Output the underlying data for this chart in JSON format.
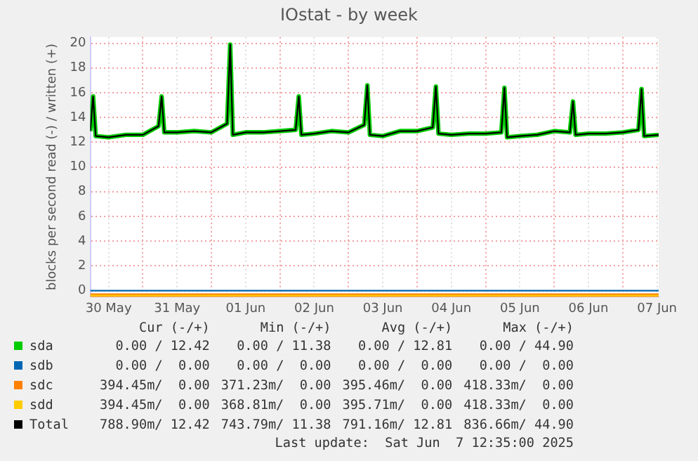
{
  "chart_data": {
    "type": "line",
    "title": "IOstat - by week",
    "ylabel": "blocks per second read (-) / written (+)",
    "xlim": [
      "2025-05-30T05:35",
      "2025-06-07T12:35"
    ],
    "xticks": [
      {
        "value": "2025-05-30T12:00",
        "label": "30 May"
      },
      {
        "value": "2025-05-31T00:00",
        "label": null
      },
      {
        "value": "2025-05-31T12:00",
        "label": "31 May"
      },
      {
        "value": "2025-06-01T00:00",
        "label": null
      },
      {
        "value": "2025-06-01T12:00",
        "label": "01 Jun"
      },
      {
        "value": "2025-06-02T00:00",
        "label": null
      },
      {
        "value": "2025-06-02T12:00",
        "label": "02 Jun"
      },
      {
        "value": "2025-06-03T00:00",
        "label": null
      },
      {
        "value": "2025-06-03T12:00",
        "label": "03 Jun"
      },
      {
        "value": "2025-06-04T00:00",
        "label": null
      },
      {
        "value": "2025-06-04T12:00",
        "label": "04 Jun"
      },
      {
        "value": "2025-06-05T00:00",
        "label": null
      },
      {
        "value": "2025-06-05T12:00",
        "label": "05 Jun"
      },
      {
        "value": "2025-06-06T00:00",
        "label": null
      },
      {
        "value": "2025-06-06T12:00",
        "label": "06 Jun"
      },
      {
        "value": "2025-06-07T00:00",
        "label": null
      },
      {
        "value": "2025-06-07T12:00",
        "label": "07 Jun"
      }
    ],
    "ylim": [
      -0.5,
      20.5
    ],
    "yticks": [
      0,
      2,
      4,
      6,
      8,
      10,
      12,
      14,
      16,
      18,
      20
    ],
    "grid": true,
    "legend": "bottom",
    "x": [
      "2025-05-30T05:35",
      "2025-05-30T06:35",
      "2025-05-30T07:30",
      "2025-05-30T12:00",
      "2025-05-30T18:00",
      "2025-05-31T00:00",
      "2025-05-31T05:30",
      "2025-05-31T06:35",
      "2025-05-31T07:30",
      "2025-05-31T12:00",
      "2025-05-31T18:00",
      "2025-06-01T00:00",
      "2025-06-01T05:30",
      "2025-06-01T06:35",
      "2025-06-01T07:30",
      "2025-06-01T12:00",
      "2025-06-01T18:00",
      "2025-06-02T00:00",
      "2025-06-02T05:30",
      "2025-06-02T06:35",
      "2025-06-02T07:30",
      "2025-06-02T12:00",
      "2025-06-02T18:00",
      "2025-06-03T00:00",
      "2025-06-03T05:30",
      "2025-06-03T06:35",
      "2025-06-03T07:30",
      "2025-06-03T12:00",
      "2025-06-03T18:00",
      "2025-06-04T00:00",
      "2025-06-04T05:30",
      "2025-06-04T06:35",
      "2025-06-04T07:30",
      "2025-06-04T12:00",
      "2025-06-04T18:00",
      "2025-06-05T00:00",
      "2025-06-05T05:30",
      "2025-06-05T06:35",
      "2025-06-05T07:30",
      "2025-06-05T12:00",
      "2025-06-05T18:00",
      "2025-06-06T00:00",
      "2025-06-06T05:30",
      "2025-06-06T06:35",
      "2025-06-06T07:30",
      "2025-06-06T12:00",
      "2025-06-06T18:00",
      "2025-06-07T00:00",
      "2025-06-07T05:30",
      "2025-06-07T06:35",
      "2025-06-07T07:30",
      "2025-06-07T12:35"
    ],
    "series": [
      {
        "name": "sda",
        "color": "#00cc00",
        "values": [
          12.9,
          15.7,
          12.5,
          12.4,
          12.6,
          12.6,
          13.3,
          15.7,
          12.8,
          12.8,
          12.9,
          12.8,
          13.5,
          19.9,
          12.6,
          12.8,
          12.8,
          12.9,
          13.0,
          15.7,
          12.6,
          12.7,
          12.9,
          12.8,
          13.4,
          16.6,
          12.6,
          12.5,
          12.9,
          12.9,
          13.2,
          16.5,
          12.7,
          12.6,
          12.7,
          12.7,
          12.8,
          16.4,
          12.4,
          12.5,
          12.6,
          12.9,
          12.8,
          15.3,
          12.6,
          12.7,
          12.7,
          12.8,
          13.0,
          16.3,
          12.5,
          12.6
        ]
      },
      {
        "name": "sdb",
        "color": "#0066b3",
        "x": [
          "2025-05-30T05:35",
          "2025-06-07T12:35"
        ],
        "values": [
          0,
          0
        ]
      },
      {
        "name": "sdc",
        "color": "#ff8000",
        "x": [
          "2025-05-30T05:35",
          "2025-06-07T12:35"
        ],
        "values": [
          -0.4,
          -0.4
        ]
      },
      {
        "name": "sdd",
        "color": "#ffcc00",
        "x": [
          "2025-05-30T05:35",
          "2025-06-07T12:35"
        ],
        "values": [
          -0.4,
          -0.4
        ]
      },
      {
        "name": "Total",
        "color": "#000000",
        "values": [
          12.9,
          15.7,
          12.5,
          12.4,
          12.6,
          12.6,
          13.3,
          15.7,
          12.8,
          12.8,
          12.9,
          12.8,
          13.5,
          19.9,
          12.6,
          12.8,
          12.8,
          12.9,
          13.0,
          15.7,
          12.6,
          12.7,
          12.9,
          12.8,
          13.4,
          16.6,
          12.6,
          12.5,
          12.9,
          12.9,
          13.2,
          16.5,
          12.7,
          12.6,
          12.7,
          12.7,
          12.8,
          16.4,
          12.4,
          12.5,
          12.6,
          12.9,
          12.8,
          15.3,
          12.6,
          12.7,
          12.7,
          12.8,
          13.0,
          16.3,
          12.5,
          12.6
        ]
      }
    ],
    "annotations": [
      "Cur (-/+)",
      "Min (-/+)",
      "Avg (-/+)",
      "Max (-/+)",
      "0.00 / 12.42",
      "0.00 / 11.38",
      "0.00 / 12.81",
      "0.00 / 44.90",
      "0.00 /  0.00",
      "0.00 /  0.00",
      "0.00 /  0.00",
      "0.00 /  0.00",
      "394.45m/  0.00",
      "371.23m/  0.00",
      "395.46m/  0.00",
      "418.33m/  0.00",
      "394.45m/  0.00",
      "368.81m/  0.00",
      "395.71m/  0.00",
      "418.33m/  0.00",
      "788.90m/ 12.42",
      "743.79m/ 11.38",
      "791.16m/ 12.81",
      "836.66m/ 44.90",
      "Last update:  Sat Jun  7 12:35:00 2025"
    ]
  }
}
